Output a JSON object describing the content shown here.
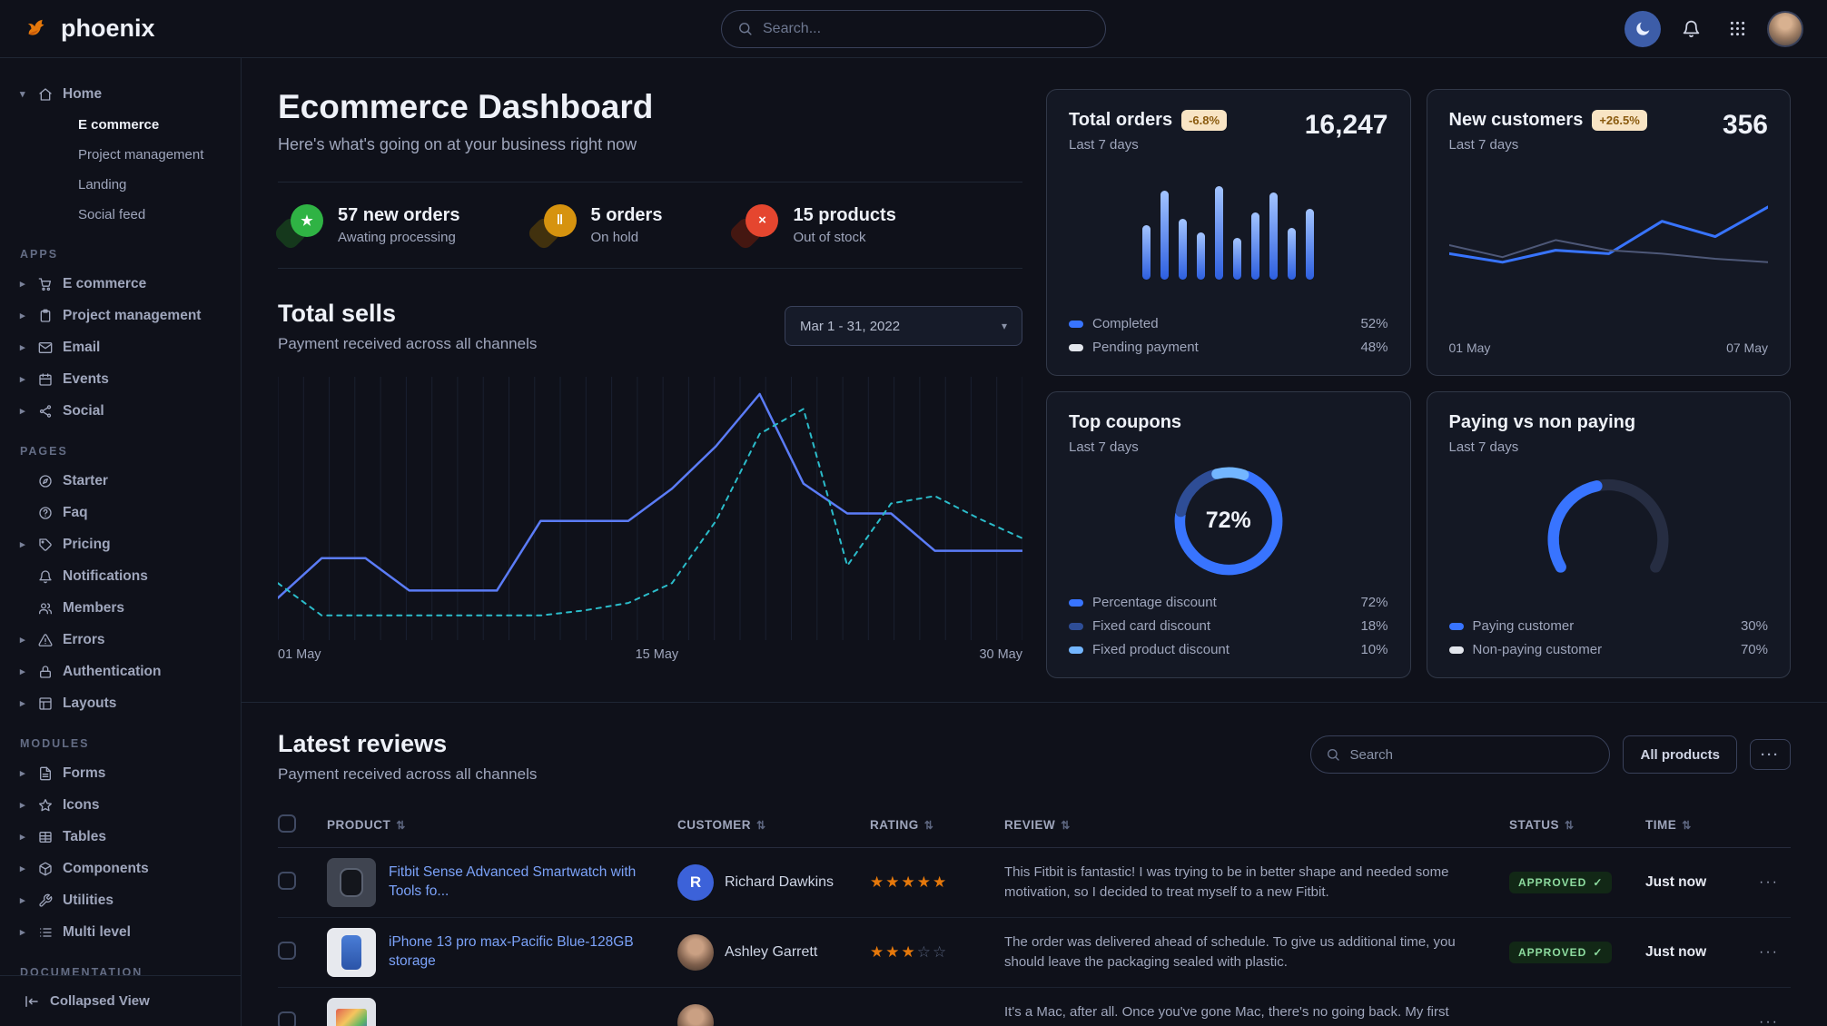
{
  "navbar": {
    "brand": "phoenix",
    "search_placeholder": "Search...",
    "icons": [
      "moon-icon",
      "bell-icon",
      "grid-icon",
      "avatar"
    ]
  },
  "sidebar": {
    "sections": [
      {
        "heading": "",
        "items": [
          {
            "label": "Home",
            "icon": "home",
            "children": [
              {
                "label": "E commerce",
                "active": true
              },
              {
                "label": "Project management"
              },
              {
                "label": "Landing"
              },
              {
                "label": "Social feed"
              }
            ]
          }
        ]
      },
      {
        "heading": "APPS",
        "items": [
          {
            "label": "E commerce",
            "icon": "cart",
            "chevron": true
          },
          {
            "label": "Project management",
            "icon": "clipboard",
            "chevron": true
          },
          {
            "label": "Email",
            "icon": "mail",
            "chevron": true
          },
          {
            "label": "Events",
            "icon": "calendar",
            "chevron": true
          },
          {
            "label": "Social",
            "icon": "share",
            "chevron": true
          }
        ]
      },
      {
        "heading": "PAGES",
        "items": [
          {
            "label": "Starter",
            "icon": "compass"
          },
          {
            "label": "Faq",
            "icon": "help"
          },
          {
            "label": "Pricing",
            "icon": "tag",
            "chevron": true
          },
          {
            "label": "Notifications",
            "icon": "bell"
          },
          {
            "label": "Members",
            "icon": "users"
          },
          {
            "label": "Errors",
            "icon": "alert",
            "chevron": true
          },
          {
            "label": "Authentication",
            "icon": "lock",
            "chevron": true
          },
          {
            "label": "Layouts",
            "icon": "layout",
            "chevron": true
          }
        ]
      },
      {
        "heading": "MODULES",
        "items": [
          {
            "label": "Forms",
            "icon": "form",
            "chevron": true
          },
          {
            "label": "Icons",
            "icon": "shapes",
            "chevron": true
          },
          {
            "label": "Tables",
            "icon": "table",
            "chevron": true
          },
          {
            "label": "Components",
            "icon": "package",
            "chevron": true
          },
          {
            "label": "Utilities",
            "icon": "tool",
            "chevron": true
          },
          {
            "label": "Multi level",
            "icon": "list",
            "chevron": true
          }
        ]
      },
      {
        "heading": "DOCUMENTATION",
        "items": []
      }
    ],
    "footer_label": "Collapsed View"
  },
  "page": {
    "title": "Ecommerce Dashboard",
    "subtitle": "Here's what's going on at your business right now"
  },
  "stats": [
    {
      "value": "57 new orders",
      "label": "Awating processing",
      "icon": "star-icon",
      "glyph": "★",
      "color": "#2fb344",
      "tint": "#15381c"
    },
    {
      "value": "5 orders",
      "label": "On hold",
      "icon": "pause-icon",
      "glyph": "‖",
      "color": "#d6930f",
      "tint": "#41310e"
    },
    {
      "value": "15 products",
      "label": "Out of stock",
      "icon": "x-icon",
      "glyph": "×",
      "color": "#e5462f",
      "tint": "#441711"
    }
  ],
  "total_sells": {
    "title": "Total sells",
    "subtitle": "Payment received across all channels",
    "date_range": "Mar 1 - 31, 2022",
    "x_labels": [
      "01 May",
      "15 May",
      "30 May"
    ],
    "chart_type": "line",
    "series": [
      {
        "name": "primary",
        "color": "#5b7cf7",
        "width": 2.5,
        "values": [
          14,
          30,
          30,
          17,
          17,
          17,
          45,
          45,
          45,
          58,
          75,
          96,
          60,
          48,
          48,
          33,
          33,
          33
        ]
      },
      {
        "name": "secondary",
        "color": "#2bbcca",
        "width": 2,
        "dash": "5 6",
        "values": [
          20,
          7,
          7,
          7,
          7,
          7,
          7,
          9,
          12,
          20,
          45,
          80,
          90,
          27,
          52,
          55,
          46,
          38
        ]
      }
    ]
  },
  "cards": {
    "total_orders": {
      "title": "Total orders",
      "badge": "-6.8%",
      "period": "Last 7 days",
      "value": "16,247",
      "chart_type": "bar",
      "bars": [
        55,
        90,
        62,
        48,
        95,
        42,
        68,
        88,
        52,
        72
      ],
      "legend": [
        {
          "label": "Completed",
          "pct": 52,
          "color": "#3874ff"
        },
        {
          "label": "Pending payment",
          "pct": 48,
          "color": "#e3e6ed"
        }
      ]
    },
    "new_customers": {
      "title": "New customers",
      "badge": "+26.5%",
      "period": "Last 7 days",
      "value": "356",
      "chart_type": "line",
      "x_labels": [
        "01 May",
        "07 May"
      ],
      "series": [
        {
          "name": "primary",
          "color": "#3874ff",
          "width": 3,
          "values": [
            40,
            30,
            44,
            40,
            78,
            60,
            95
          ]
        },
        {
          "name": "secondary",
          "color": "#4e5878",
          "width": 2,
          "values": [
            50,
            36,
            56,
            44,
            40,
            34,
            30
          ]
        }
      ]
    },
    "top_coupons": {
      "title": "Top coupons",
      "period": "Last 7 days",
      "chart_type": "donut",
      "center_label": "72%",
      "segments": [
        {
          "label": "Percentage discount",
          "pct": 72,
          "color": "#3874ff"
        },
        {
          "label": "Fixed card discount",
          "pct": 18,
          "color": "#2e4d96"
        },
        {
          "label": "Fixed product discount",
          "pct": 10,
          "color": "#73b6ff"
        }
      ]
    },
    "paying": {
      "title": "Paying vs non paying",
      "period": "Last 7 days",
      "chart_type": "gauge",
      "segments": [
        {
          "label": "Paying customer",
          "pct": 30,
          "color": "#3874ff"
        },
        {
          "label": "Non-paying customer",
          "pct": 70,
          "color": "#e3e6ed"
        }
      ]
    }
  },
  "reviews": {
    "title": "Latest reviews",
    "subtitle": "Payment received across all channels",
    "search_placeholder": "Search",
    "filter_button": "All products",
    "columns": [
      "PRODUCT",
      "CUSTOMER",
      "RATING",
      "REVIEW",
      "STATUS",
      "TIME"
    ],
    "rows": [
      {
        "product": "Fitbit Sense Advanced Smartwatch with Tools fo...",
        "thumb": "smartwatch",
        "customer": "Richard Dawkins",
        "avatar_initial": "R",
        "rating": 5,
        "review": "This Fitbit is fantastic! I was trying to be in better shape and needed some motivation, so I decided to treat myself to a new Fitbit.",
        "status": "APPROVED",
        "time": "Just now"
      },
      {
        "product": "iPhone 13 pro max-Pacific Blue-128GB storage",
        "thumb": "phone",
        "customer": "Ashley Garrett",
        "avatar_initial": null,
        "rating": 3,
        "review": "The order was delivered ahead of schedule. To give us additional time, you should leave the packaging sealed with plastic.",
        "status": "APPROVED",
        "time": "Just now"
      },
      {
        "product": "",
        "thumb": "laptop",
        "customer": "",
        "avatar_initial": null,
        "rating": null,
        "review": "It's a Mac, after all. Once you've gone Mac, there's no going back. My first Mac lasted...",
        "status": "",
        "time": ""
      }
    ]
  }
}
